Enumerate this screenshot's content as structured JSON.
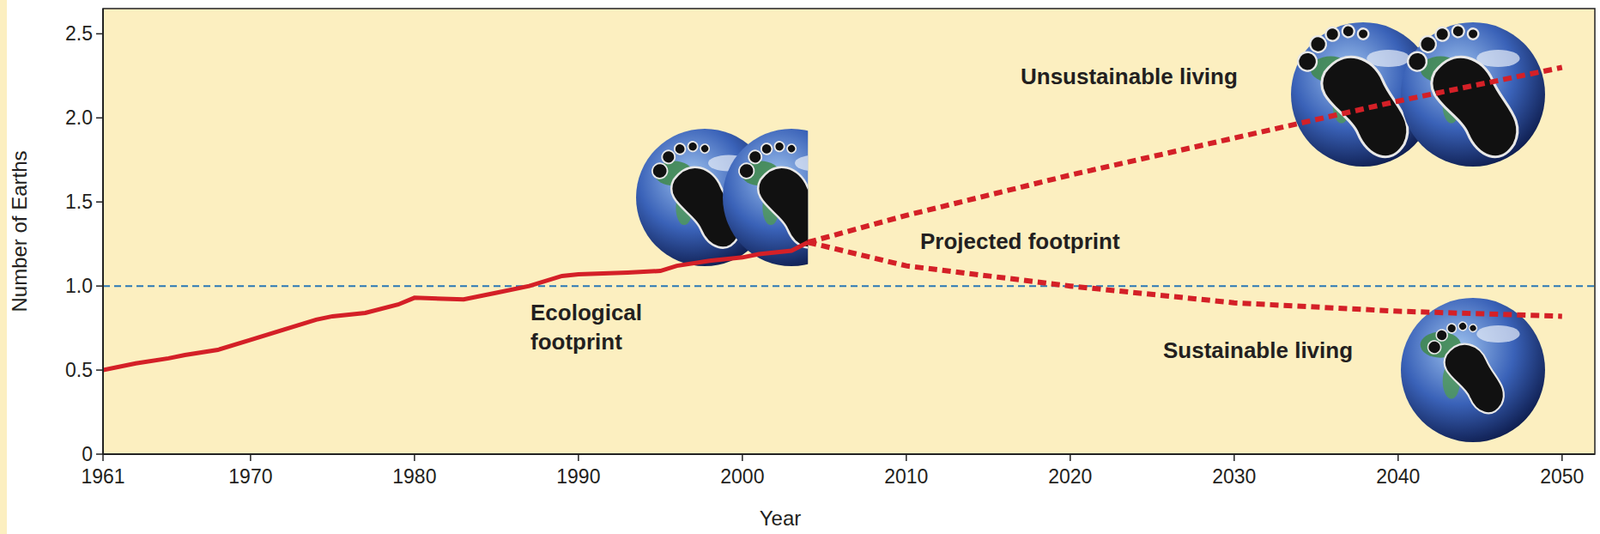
{
  "chart_data": {
    "type": "line",
    "x_label": "Year",
    "y_label": "Number of Earths",
    "xlim": [
      1961,
      2052
    ],
    "ylim": [
      0,
      2.65
    ],
    "xticks": [
      1961,
      1970,
      1980,
      1990,
      2000,
      2010,
      2020,
      2030,
      2040,
      2050
    ],
    "yticks": [
      0,
      0.5,
      {
        "value": 1,
        "label": "1.0"
      },
      1.5,
      {
        "value": 2,
        "label": "2.0"
      },
      2.5
    ],
    "grid": false,
    "reference_line": 1,
    "annotations": [
      "Projected footprint"
    ],
    "series": [
      {
        "name": "Ecological footprint",
        "color": "#d42027",
        "line_style": "solid",
        "x": [
          1961,
          1963,
          1965,
          1966,
          1968,
          1970,
          1972,
          1974,
          1975,
          1977,
          1979,
          1980,
          1983,
          1985,
          1987,
          1989,
          1990,
          1993,
          1995,
          1996,
          1998,
          2000,
          2001,
          2003,
          2004
        ],
        "values": [
          0.5,
          0.54,
          0.57,
          0.59,
          0.62,
          0.68,
          0.74,
          0.8,
          0.82,
          0.84,
          0.89,
          0.93,
          0.92,
          0.96,
          1.0,
          1.06,
          1.07,
          1.08,
          1.09,
          1.12,
          1.15,
          1.17,
          1.19,
          1.21,
          1.26
        ]
      },
      {
        "name": "Unsustainable living",
        "color": "#d42027",
        "line_style": "dashed",
        "x": [
          2004,
          2010,
          2020,
          2030,
          2040,
          2050
        ],
        "values": [
          1.26,
          1.42,
          1.66,
          1.88,
          2.1,
          2.3
        ]
      },
      {
        "name": "Sustainable living",
        "color": "#d42027",
        "line_style": "dashed",
        "x": [
          2004,
          2010,
          2020,
          2030,
          2040,
          2050
        ],
        "values": [
          1.26,
          1.12,
          1.0,
          0.9,
          0.85,
          0.82
        ]
      }
    ]
  }
}
